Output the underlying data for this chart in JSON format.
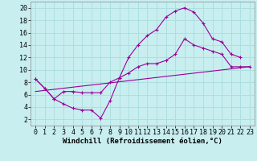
{
  "xlabel": "Windchill (Refroidissement éolien,°C)",
  "bg_color": "#c8eef0",
  "line_color": "#990099",
  "grid_color": "#aadddd",
  "xlim": [
    -0.5,
    23.5
  ],
  "ylim": [
    1.0,
    21.0
  ],
  "xticks": [
    0,
    1,
    2,
    3,
    4,
    5,
    6,
    7,
    8,
    9,
    10,
    11,
    12,
    13,
    14,
    15,
    16,
    17,
    18,
    19,
    20,
    21,
    22,
    23
  ],
  "yticks": [
    2,
    4,
    6,
    8,
    10,
    12,
    14,
    16,
    18,
    20
  ],
  "curve1_x": [
    0,
    1,
    2,
    3,
    4,
    5,
    6,
    7,
    8,
    9,
    10,
    11,
    12,
    13,
    14,
    15,
    16,
    17,
    18,
    19,
    20,
    21,
    22
  ],
  "curve1_y": [
    8.5,
    7.0,
    5.3,
    4.5,
    3.8,
    3.5,
    3.5,
    2.2,
    5.0,
    8.7,
    12.0,
    14.0,
    15.5,
    16.5,
    18.5,
    19.5,
    20.0,
    19.3,
    17.5,
    15.0,
    14.5,
    12.5,
    12.0
  ],
  "curve2_x": [
    0,
    1,
    2,
    3,
    4,
    5,
    6,
    7,
    8,
    9,
    10,
    11,
    12,
    13,
    14,
    15,
    16,
    17,
    18,
    19,
    20,
    21,
    22,
    23
  ],
  "curve2_y": [
    8.5,
    7.0,
    5.3,
    6.5,
    6.5,
    6.3,
    6.3,
    6.3,
    8.0,
    8.7,
    9.5,
    10.5,
    11.0,
    11.0,
    11.5,
    12.5,
    15.0,
    14.0,
    13.5,
    13.0,
    12.5,
    10.5,
    10.5,
    10.5
  ],
  "curve3_x": [
    0,
    23
  ],
  "curve3_y": [
    6.5,
    10.5
  ],
  "tick_fontsize": 6,
  "label_fontsize": 6.5
}
